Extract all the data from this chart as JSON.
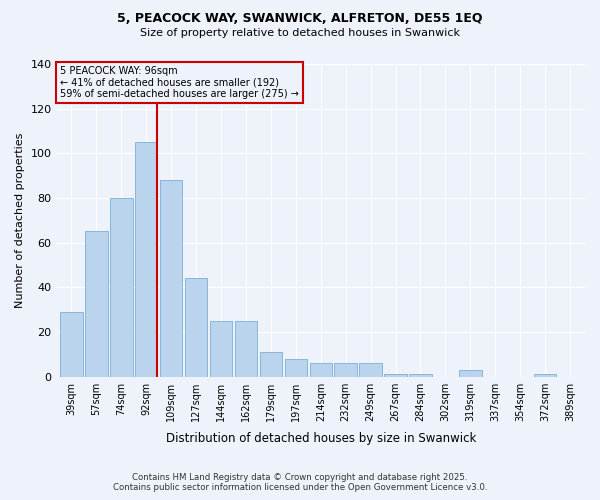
{
  "title1": "5, PEACOCK WAY, SWANWICK, ALFRETON, DE55 1EQ",
  "title2": "Size of property relative to detached houses in Swanwick",
  "xlabel": "Distribution of detached houses by size in Swanwick",
  "ylabel": "Number of detached properties",
  "categories": [
    "39sqm",
    "57sqm",
    "74sqm",
    "92sqm",
    "109sqm",
    "127sqm",
    "144sqm",
    "162sqm",
    "179sqm",
    "197sqm",
    "214sqm",
    "232sqm",
    "249sqm",
    "267sqm",
    "284sqm",
    "302sqm",
    "319sqm",
    "337sqm",
    "354sqm",
    "372sqm",
    "389sqm"
  ],
  "values": [
    29,
    65,
    80,
    105,
    88,
    44,
    25,
    25,
    11,
    8,
    6,
    6,
    6,
    1,
    1,
    0,
    3,
    0,
    0,
    1,
    0
  ],
  "bar_color": "#bad4ee",
  "bar_edge_color": "#7aafd4",
  "marker_index": 3,
  "marker_label": "5 PEACOCK WAY: 96sqm",
  "annotation_line1": "← 41% of detached houses are smaller (192)",
  "annotation_line2": "59% of semi-detached houses are larger (275) →",
  "marker_line_color": "#cc0000",
  "box_edge_color": "#cc0000",
  "ylim": [
    0,
    140
  ],
  "yticks": [
    0,
    20,
    40,
    60,
    80,
    100,
    120,
    140
  ],
  "background_color": "#eef2fa",
  "footer1": "Contains HM Land Registry data © Crown copyright and database right 2025.",
  "footer2": "Contains public sector information licensed under the Open Government Licence v3.0."
}
